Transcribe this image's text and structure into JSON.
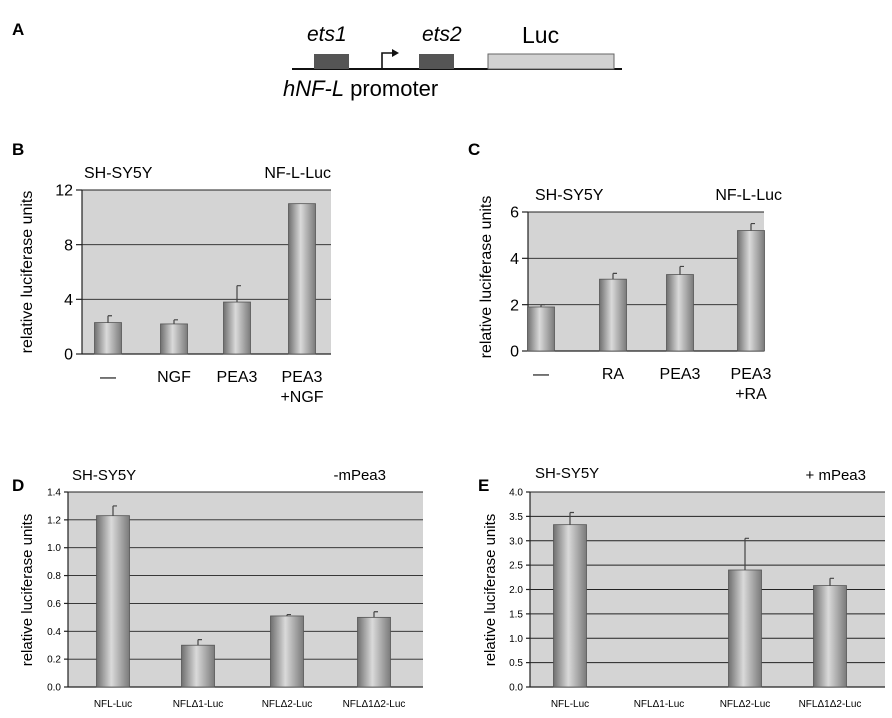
{
  "panel_a": {
    "letter": "A",
    "site1": "ets1",
    "site2": "ets2",
    "reporter": "Luc",
    "promoter_gene": "hNF-L",
    "promoter_word": "promoter"
  },
  "colors": {
    "plot_bg": "#d4d4d4",
    "bar_dark": "#7a7a7a",
    "bar_light": "#d8d8d8",
    "site_box": "#555555",
    "luc_box": "#d2d2d2"
  },
  "chart_data": [
    {
      "panel": "B",
      "type": "bar",
      "cell_line": "SH-SY5Y",
      "reporter": "NF-L-Luc",
      "ylabel": "relative luciferase units",
      "categories": [
        [
          "—"
        ],
        [
          "NGF"
        ],
        [
          "PEA3"
        ],
        [
          "PEA3",
          "+NGF"
        ]
      ],
      "values": [
        2.3,
        2.2,
        3.8,
        11.0
      ],
      "errors": [
        0.5,
        0.3,
        1.2,
        0
      ],
      "ylim": [
        0,
        12
      ],
      "yticks": [
        0,
        4,
        8,
        12
      ]
    },
    {
      "panel": "C",
      "type": "bar",
      "cell_line": "SH-SY5Y",
      "reporter": "NF-L-Luc",
      "ylabel": "relative luciferase units",
      "categories": [
        [
          "—"
        ],
        [
          "RA"
        ],
        [
          "PEA3"
        ],
        [
          "PEA3",
          "+RA"
        ]
      ],
      "values": [
        1.9,
        3.1,
        3.3,
        5.2
      ],
      "errors": [
        0.1,
        0.25,
        0.35,
        0.3
      ],
      "ylim": [
        0,
        6
      ],
      "yticks": [
        0,
        2,
        4,
        6
      ]
    },
    {
      "panel": "D",
      "type": "bar",
      "cell_line": "SH-SY5Y",
      "reporter": "-mPea3",
      "ylabel": "relative luciferase units",
      "categories": [
        [
          "NFL-Luc"
        ],
        [
          "NFLΔ1-Luc"
        ],
        [
          "NFLΔ2-Luc"
        ],
        [
          "NFLΔ1Δ2-Luc"
        ]
      ],
      "values": [
        1.23,
        0.3,
        0.51,
        0.5
      ],
      "errors": [
        0.07,
        0.04,
        0.01,
        0.04
      ],
      "ylim": [
        0,
        1.4
      ],
      "yticks": [
        "0.0",
        "0.2",
        "0.4",
        "0.6",
        "0.8",
        "1.0",
        "1.2",
        "1.4"
      ]
    },
    {
      "panel": "E",
      "type": "bar",
      "cell_line": "SH-SY5Y",
      "reporter": "+ mPea3",
      "ylabel": "relative luciferase units",
      "categories": [
        [
          "NFL-Luc"
        ],
        [
          "NFLΔ1-Luc"
        ],
        [
          "NFLΔ2-Luc"
        ],
        [
          "NFLΔ1Δ2-Luc"
        ]
      ],
      "values": [
        3.33,
        0,
        2.4,
        2.08
      ],
      "errors": [
        0.25,
        0,
        0.65,
        0.15
      ],
      "ylim": [
        0,
        4.0
      ],
      "yticks": [
        "0.0",
        "0.5",
        "1.0",
        "1.5",
        "2.0",
        "2.5",
        "3.0",
        "3.5",
        "4.0"
      ]
    }
  ]
}
